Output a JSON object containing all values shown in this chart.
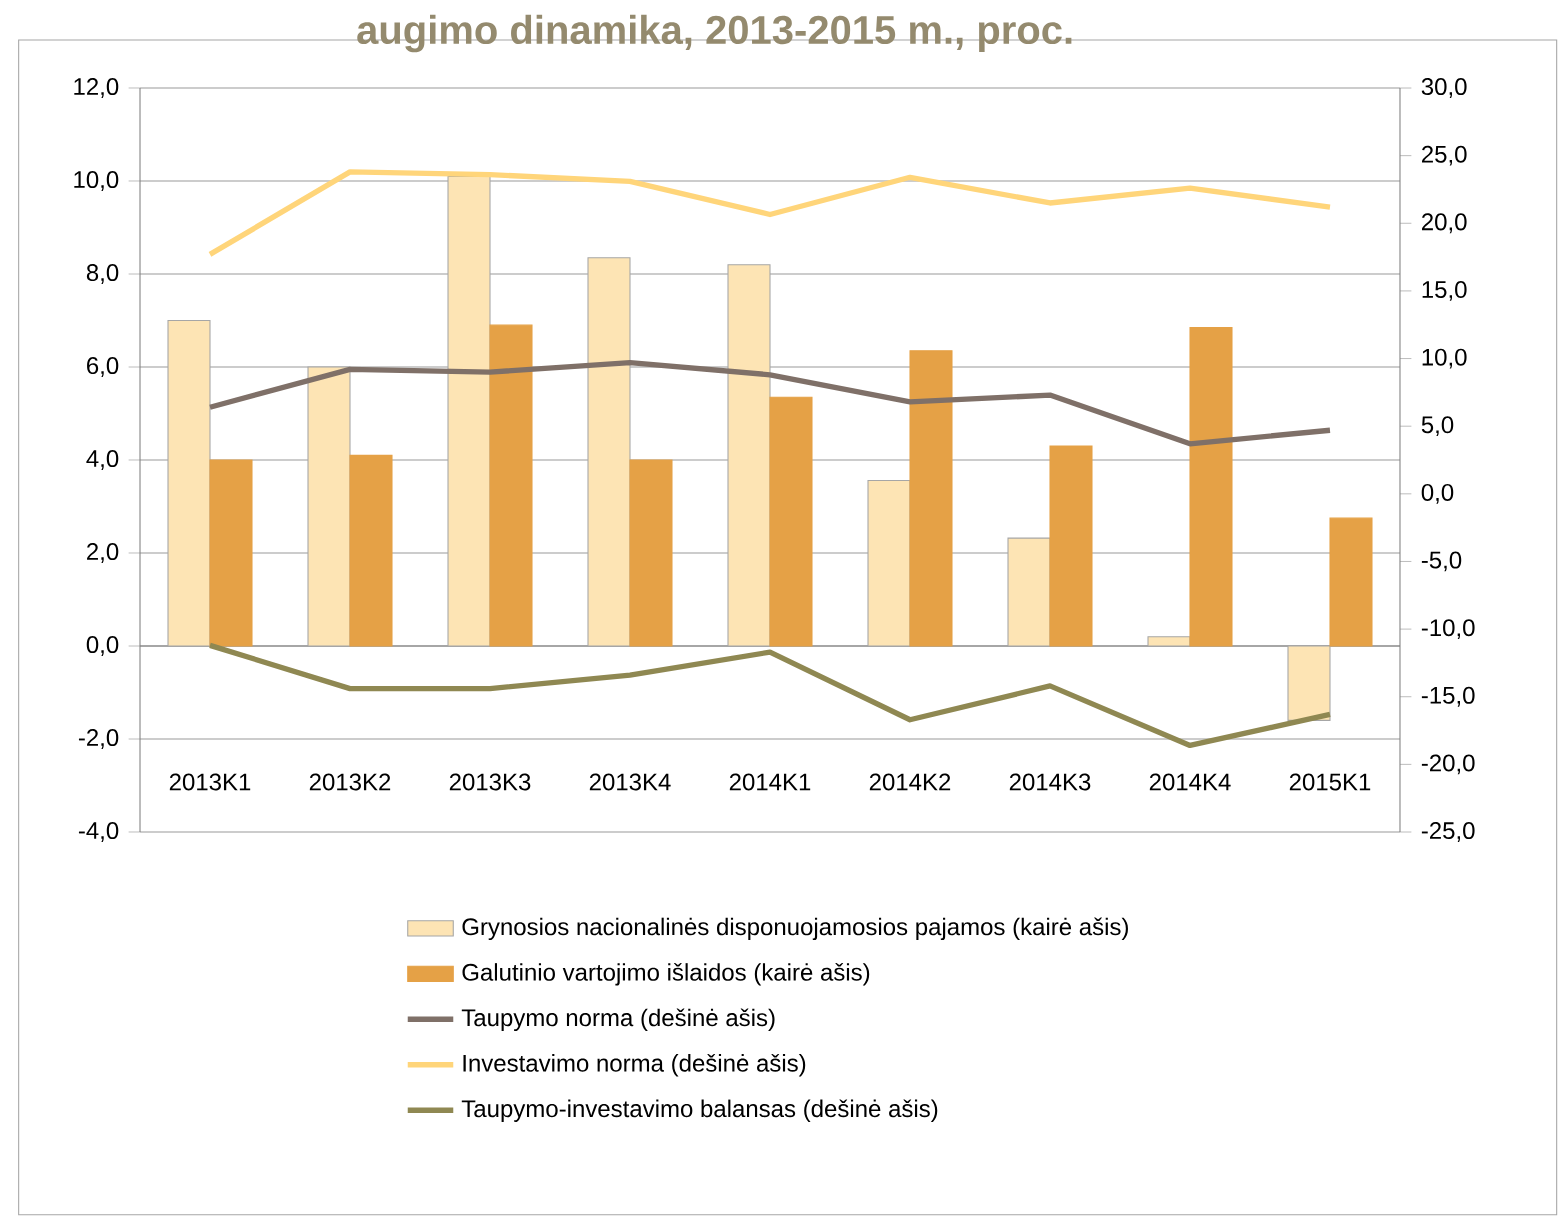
{
  "chart_data": {
    "type": "bar",
    "title": "augimo dinamika, 2013-2015 m., proc.",
    "categories": [
      "2013K1",
      "2013K2",
      "2013K3",
      "2013K4",
      "2014K1",
      "2014K2",
      "2014K3",
      "2014K4",
      "2015K1"
    ],
    "series": [
      {
        "name": "Grynosios nacionalinės disponuojamosios pajamos (kairė ašis)",
        "color": "#fde4b4",
        "values": [
          7.0,
          6.0,
          10.1,
          8.35,
          8.2,
          3.56,
          2.32,
          0.2,
          -1.6
        ]
      },
      {
        "name": "Galutinio vartojimo išlaidos (kairė ašis)",
        "color": "#e5a146",
        "values": [
          4.0,
          4.1,
          6.9,
          4.0,
          5.35,
          6.35,
          4.3,
          6.85,
          2.75
        ]
      },
      {
        "name": "Taupymo norma (dešinė ašis)",
        "type": "line",
        "axis": "y2",
        "color": "#7f7068",
        "values": [
          6.4,
          9.2,
          9.0,
          9.7,
          8.8,
          6.8,
          7.3,
          3.7,
          4.7
        ]
      },
      {
        "name": "Investavimo norma (dešinė ašis)",
        "type": "line",
        "axis": "y2",
        "color": "#ffd57a",
        "values": [
          17.7,
          23.8,
          23.6,
          23.1,
          20.65,
          23.4,
          21.5,
          22.6,
          21.2
        ]
      },
      {
        "name": "Taupymo-investavimo balansas (dešinė ašis)",
        "type": "line",
        "axis": "y2",
        "color": "#8f8852",
        "values": [
          -11.2,
          -14.4,
          -14.4,
          -13.4,
          -11.7,
          -16.7,
          -14.2,
          -18.6,
          -16.3
        ]
      }
    ],
    "ylim": [
      -4,
      12
    ],
    "yticks": [
      {
        "value": -4,
        "label": "-4,0"
      },
      {
        "value": -2,
        "label": "-2,0"
      },
      {
        "value": 0,
        "label": "0,0"
      },
      {
        "value": 2,
        "label": "2,0"
      },
      {
        "value": 4,
        "label": "4,0"
      },
      {
        "value": 6,
        "label": "6,0"
      },
      {
        "value": 8,
        "label": "8,0"
      },
      {
        "value": 10,
        "label": "10,0"
      },
      {
        "value": 12,
        "label": "12,0"
      }
    ],
    "y2lim": [
      -25,
      30
    ],
    "y2ticks": [
      {
        "value": -25,
        "label": "-25,0"
      },
      {
        "value": -20,
        "label": "-20,0"
      },
      {
        "value": -15,
        "label": "-15,0"
      },
      {
        "value": -10,
        "label": "-10,0"
      },
      {
        "value": -5,
        "label": "-5,0"
      },
      {
        "value": 0,
        "label": "0,0"
      },
      {
        "value": 5,
        "label": "5,0"
      },
      {
        "value": 10,
        "label": "10,0"
      },
      {
        "value": 15,
        "label": "15,0"
      },
      {
        "value": 20,
        "label": "20,0"
      },
      {
        "value": 25,
        "label": "25,0"
      },
      {
        "value": 30,
        "label": "30,0"
      }
    ],
    "grid": "y",
    "legend": "bottom"
  }
}
